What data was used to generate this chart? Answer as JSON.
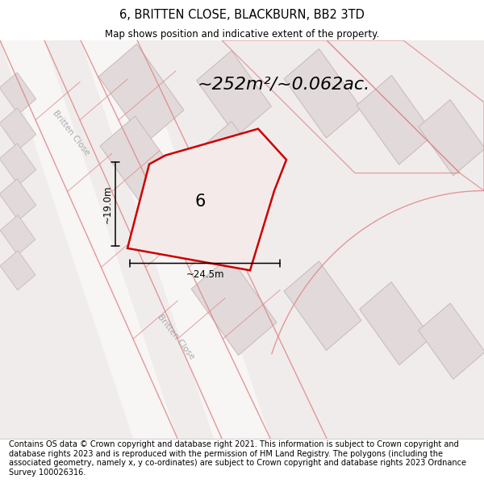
{
  "title": "6, BRITTEN CLOSE, BLACKBURN, BB2 3TD",
  "subtitle": "Map shows position and indicative extent of the property.",
  "area_text": "~252m²/~0.062ac.",
  "label_number": "6",
  "dim_horiz": "~24.5m",
  "dim_vert": "~19.0m",
  "footer": "Contains OS data © Crown copyright and database right 2021. This information is subject to Crown copyright and database rights 2023 and is reproduced with the permission of HM Land Registry. The polygons (including the associated geometry, namely x, y co-ordinates) are subject to Crown copyright and database rights 2023 Ordnance Survey 100026316.",
  "bg_color": "#f0ecec",
  "building_fill": "#e2dada",
  "building_edge": "#c8b8b8",
  "road_fill": "#ffffff",
  "plot_outline_color": "#e08888",
  "property_fill": "#f5eaea",
  "property_edge": "#cc0000",
  "street_label_color": "#aaaaaa",
  "title_fontsize": 10.5,
  "subtitle_fontsize": 8.5,
  "area_fontsize": 16,
  "label_fontsize": 15,
  "dim_fontsize": 8.5,
  "footer_fontsize": 7.0,
  "map_xlim": [
    0,
    600
  ],
  "map_ylim": [
    0,
    450
  ]
}
